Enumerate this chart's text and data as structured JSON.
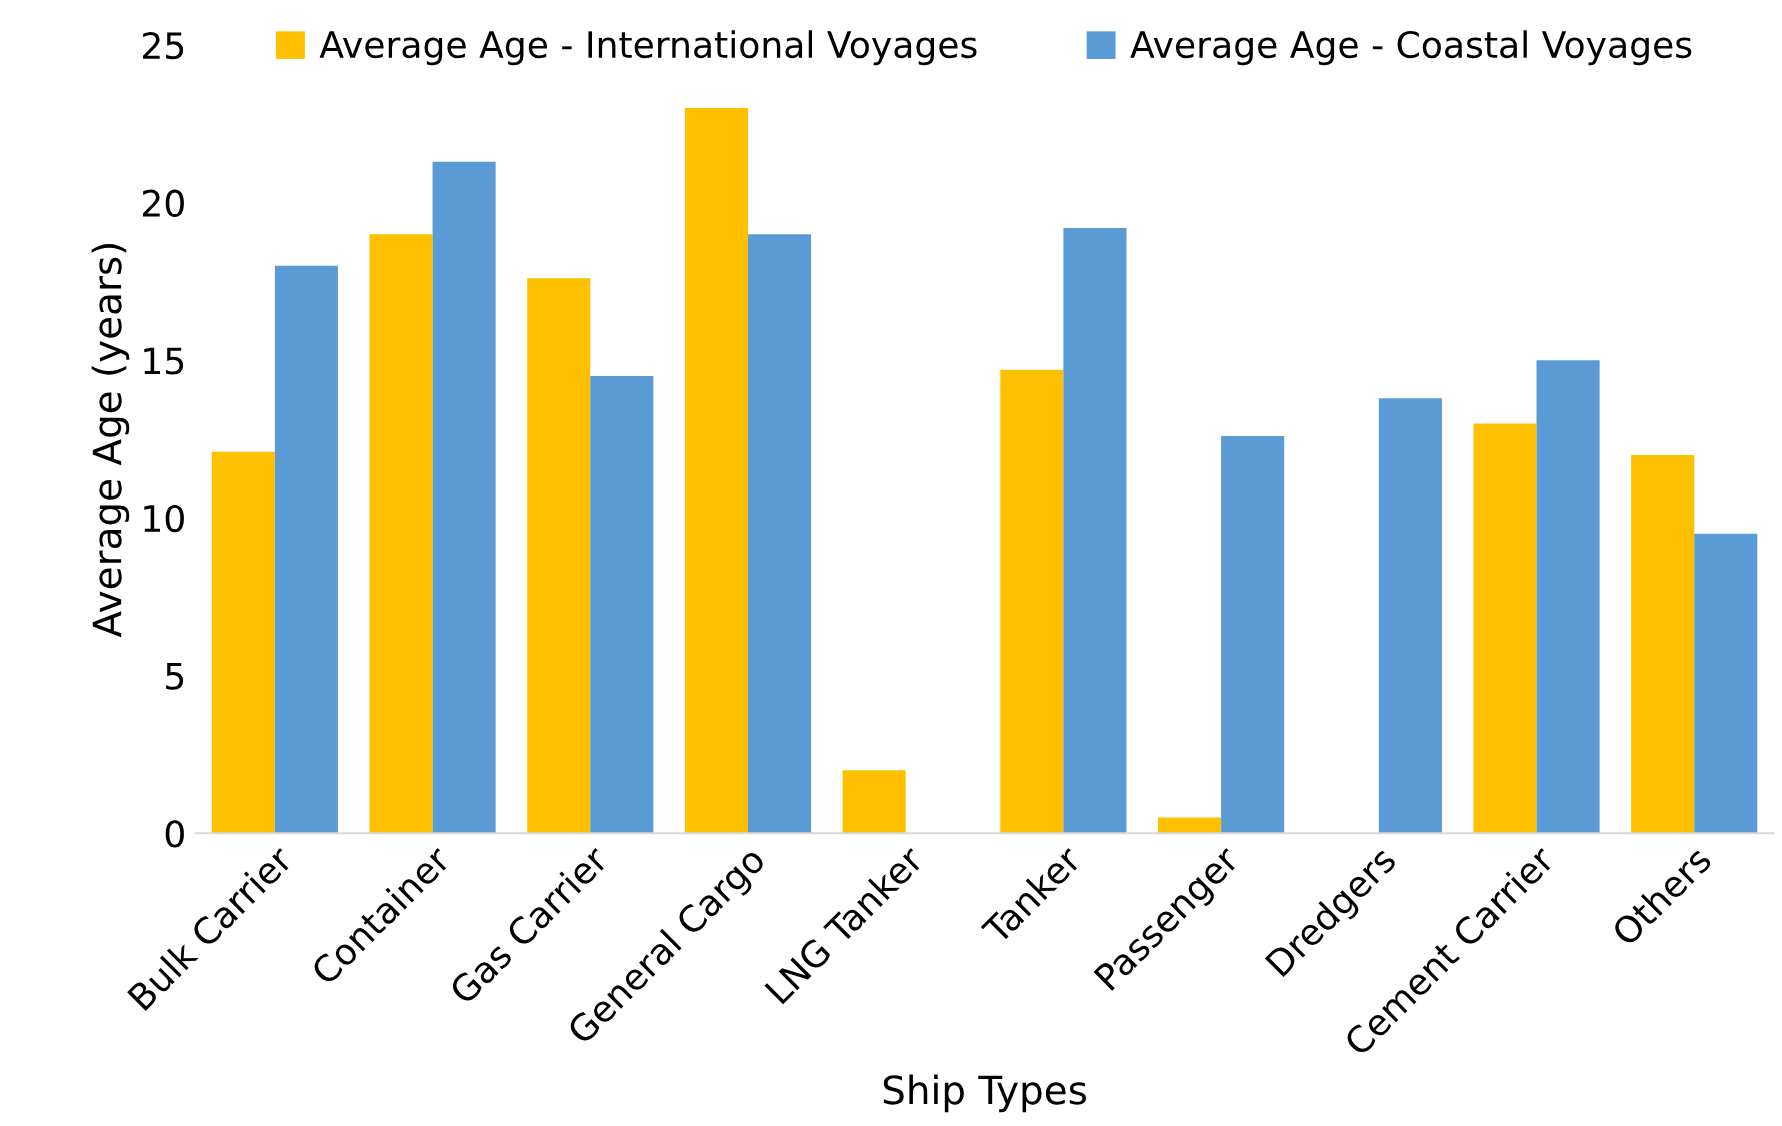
{
  "chart_data": {
    "type": "bar",
    "xlabel": "Ship Types",
    "ylabel": "Average Age (years)",
    "categories": [
      "Bulk Carrier",
      "Container",
      "Gas Carrier",
      "General Cargo",
      "LNG Tanker",
      "Tanker",
      "Passenger",
      "Dredgers",
      "Cement Carrier",
      "Others"
    ],
    "series": [
      {
        "name": "Average Age - International Voyages",
        "color": "#ffc000",
        "values": [
          12.1,
          19.0,
          17.6,
          23.0,
          2.0,
          14.7,
          0.5,
          null,
          13.0,
          12.0
        ]
      },
      {
        "name": "Average Age - Coastal Voyages",
        "color": "#5b9bd5",
        "values": [
          18.0,
          21.3,
          14.5,
          19.0,
          null,
          19.2,
          12.6,
          13.8,
          15.0,
          9.5
        ]
      }
    ],
    "ylim": [
      0,
      25
    ],
    "yticks": [
      0,
      5,
      10,
      15,
      20,
      25
    ],
    "grid": false,
    "legend": "top"
  }
}
